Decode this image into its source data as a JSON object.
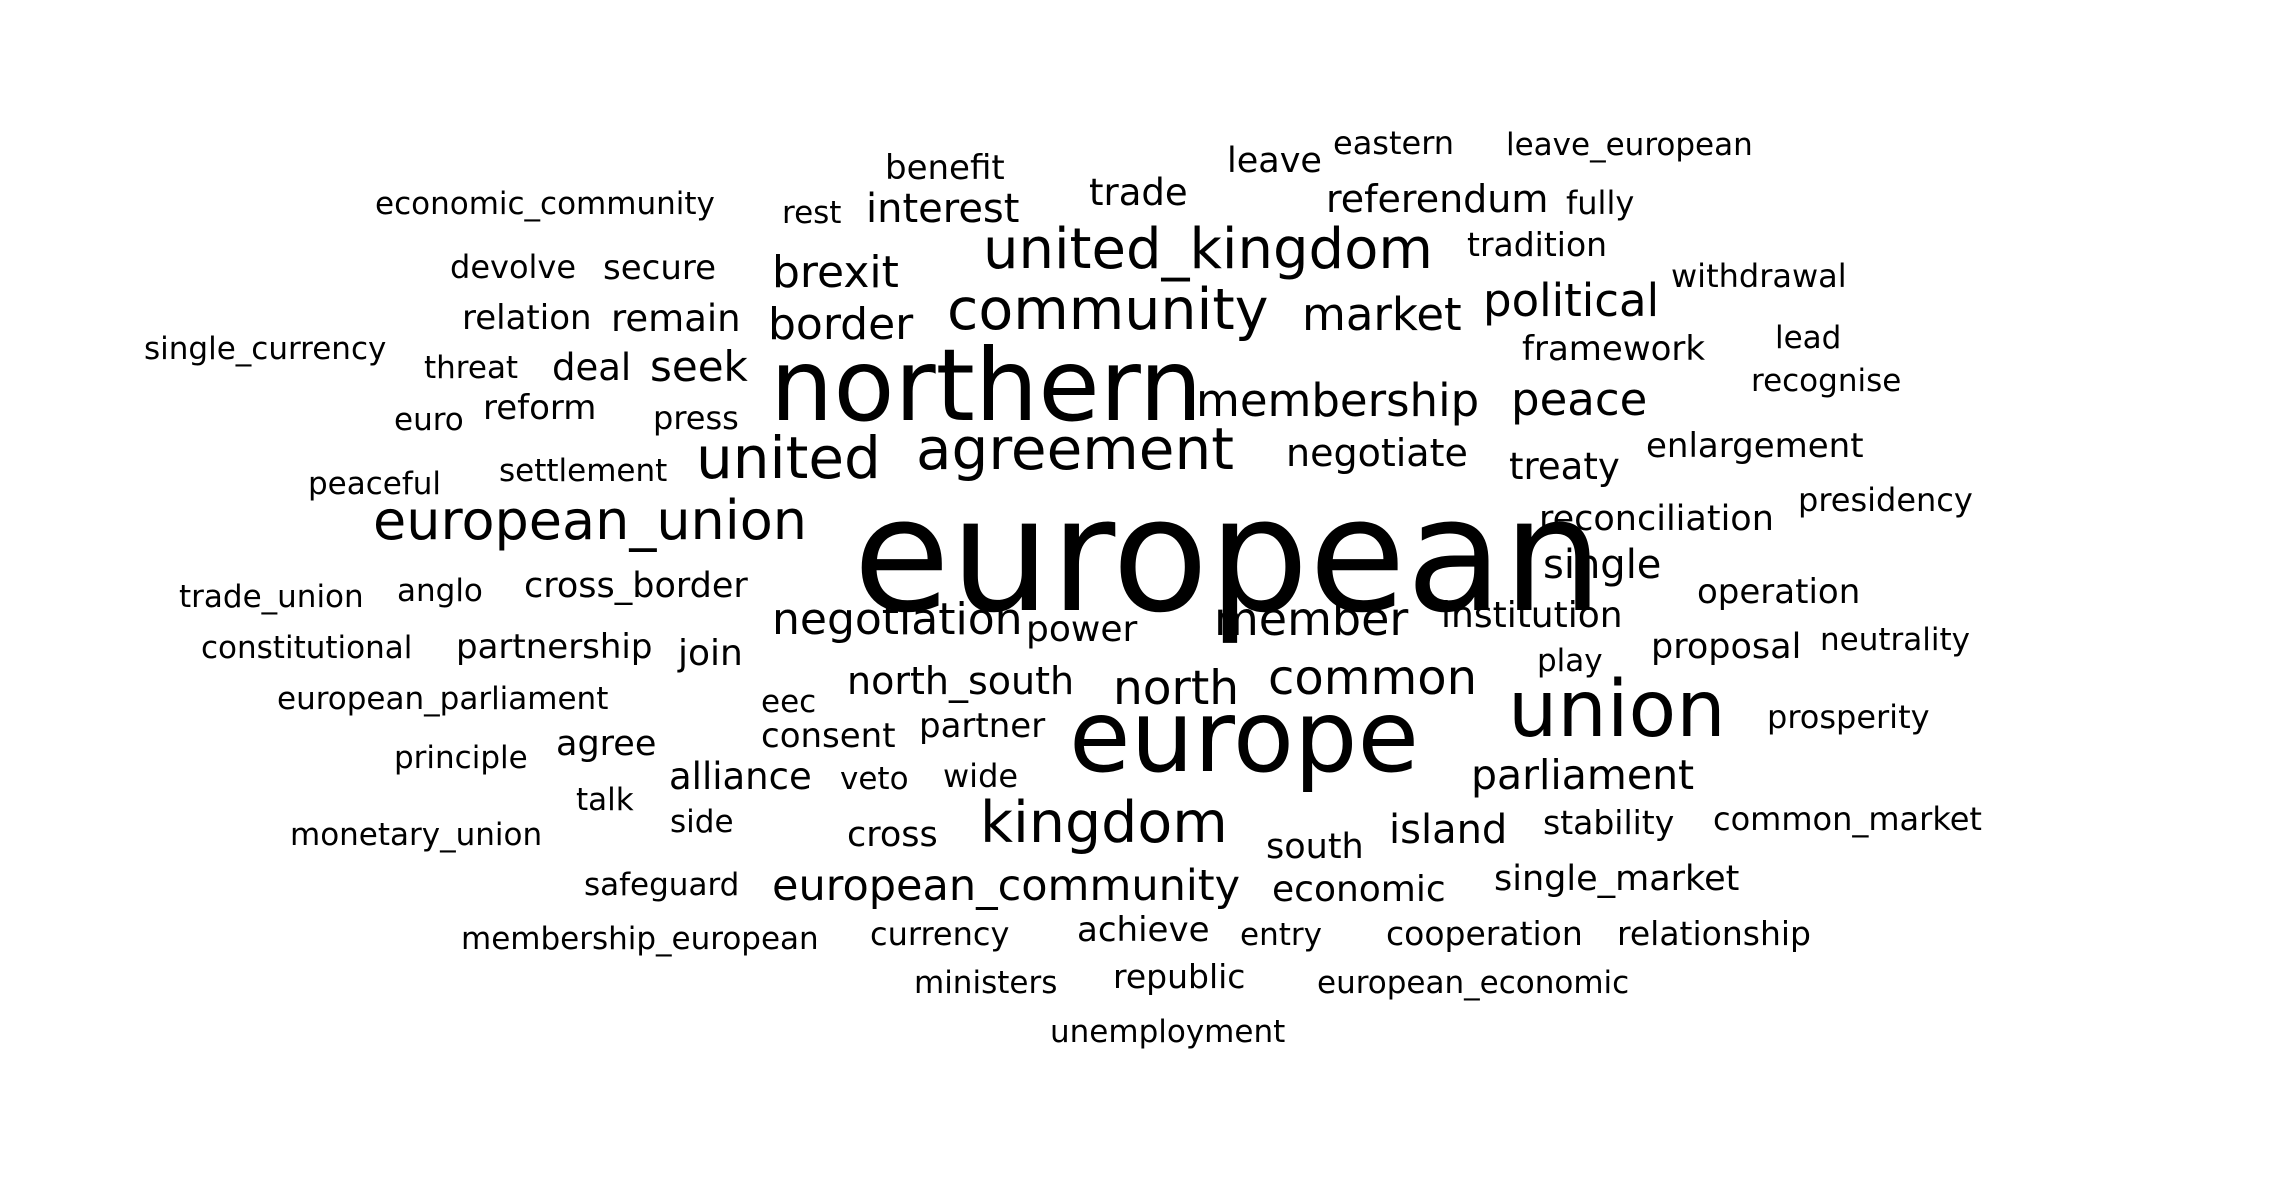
{
  "colors": {
    "background": "#ffffff",
    "text": "#000000"
  },
  "words": [
    {
      "text": "european"
    },
    {
      "text": "northern"
    },
    {
      "text": "europe"
    },
    {
      "text": "union"
    },
    {
      "text": "community"
    },
    {
      "text": "united_kingdom"
    },
    {
      "text": "agreement"
    },
    {
      "text": "united"
    },
    {
      "text": "kingdom"
    },
    {
      "text": "european_union"
    },
    {
      "text": "membership"
    },
    {
      "text": "member"
    },
    {
      "text": "north"
    },
    {
      "text": "common"
    },
    {
      "text": "negotiation"
    },
    {
      "text": "european_community"
    },
    {
      "text": "political"
    },
    {
      "text": "market"
    },
    {
      "text": "peace"
    },
    {
      "text": "brexit"
    },
    {
      "text": "border"
    },
    {
      "text": "interest"
    },
    {
      "text": "seek"
    },
    {
      "text": "parliament"
    },
    {
      "text": "single"
    },
    {
      "text": "island"
    },
    {
      "text": "north_south"
    },
    {
      "text": "alliance"
    },
    {
      "text": "negotiate"
    },
    {
      "text": "institution"
    },
    {
      "text": "power"
    },
    {
      "text": "treaty"
    },
    {
      "text": "referendum"
    },
    {
      "text": "remain"
    },
    {
      "text": "trade"
    },
    {
      "text": "deal"
    },
    {
      "text": "reconciliation"
    },
    {
      "text": "join"
    },
    {
      "text": "economic"
    },
    {
      "text": "single_market"
    },
    {
      "text": "proposal"
    },
    {
      "text": "operation"
    },
    {
      "text": "cross_border"
    },
    {
      "text": "partner"
    },
    {
      "text": "enlargement"
    },
    {
      "text": "achieve"
    },
    {
      "text": "cooperation"
    },
    {
      "text": "cross"
    },
    {
      "text": "framework"
    },
    {
      "text": "partnership"
    },
    {
      "text": "agree"
    },
    {
      "text": "secure"
    },
    {
      "text": "reform"
    },
    {
      "text": "relation"
    },
    {
      "text": "south"
    },
    {
      "text": "stability"
    },
    {
      "text": "relationship"
    },
    {
      "text": "leave"
    },
    {
      "text": "presidency"
    },
    {
      "text": "benefit"
    },
    {
      "text": "republic"
    },
    {
      "text": "tradition"
    },
    {
      "text": "prosperity"
    },
    {
      "text": "consent"
    },
    {
      "text": "withdrawal"
    },
    {
      "text": "currency"
    },
    {
      "text": "eastern"
    },
    {
      "text": "recognise"
    },
    {
      "text": "economic_community"
    },
    {
      "text": "devolve"
    },
    {
      "text": "constitutional"
    },
    {
      "text": "european_parliament"
    },
    {
      "text": "common_market"
    },
    {
      "text": "membership_european"
    },
    {
      "text": "european_economic"
    },
    {
      "text": "settlement"
    },
    {
      "text": "trade_union"
    },
    {
      "text": "principle"
    },
    {
      "text": "monetary_union"
    },
    {
      "text": "neutrality"
    },
    {
      "text": "leave_european"
    },
    {
      "text": "single_currency"
    },
    {
      "text": "fully"
    },
    {
      "text": "anglo"
    },
    {
      "text": "press"
    },
    {
      "text": "peaceful"
    },
    {
      "text": "threat"
    },
    {
      "text": "ministers"
    },
    {
      "text": "side"
    },
    {
      "text": "wide"
    },
    {
      "text": "safeguard"
    },
    {
      "text": "unemployment"
    },
    {
      "text": "talk"
    },
    {
      "text": "entry"
    },
    {
      "text": "play"
    },
    {
      "text": "eec"
    },
    {
      "text": "rest"
    },
    {
      "text": "veto"
    },
    {
      "text": "euro"
    },
    {
      "text": "lead"
    }
  ]
}
